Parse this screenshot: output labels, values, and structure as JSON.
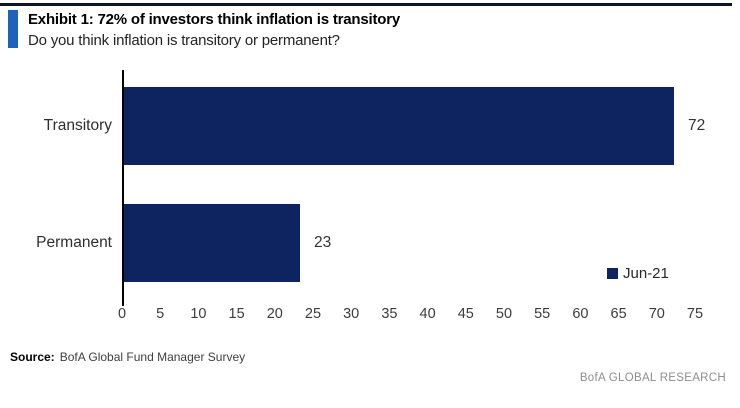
{
  "header": {
    "title": "Exhibit 1: 72% of investors think inflation is transitory",
    "subtitle": "Do you think inflation is transitory or permanent?"
  },
  "chart_data": {
    "type": "bar",
    "orientation": "horizontal",
    "categories": [
      "Transitory",
      "Permanent"
    ],
    "series": [
      {
        "name": "Jun-21",
        "values": [
          72,
          23
        ]
      }
    ],
    "values": [
      72,
      23
    ],
    "xticks": [
      0,
      5,
      10,
      15,
      20,
      25,
      30,
      35,
      40,
      45,
      50,
      55,
      60,
      65,
      70,
      75
    ],
    "xlim": [
      0,
      75
    ],
    "grid": false,
    "legend_position": "right-middle",
    "bar_color": "#0d2460",
    "title": "Exhibit 1: 72% of investors think inflation is transitory",
    "xlabel": "",
    "ylabel": ""
  },
  "footer": {
    "source_label": "Source:",
    "source_text": "BofA Global Fund Manager Survey",
    "branding": "BofA GLOBAL RESEARCH"
  },
  "colors": {
    "accent_blue": "#1d63bd",
    "bar_navy": "#0d2460",
    "top_rule": "#0c1526"
  }
}
